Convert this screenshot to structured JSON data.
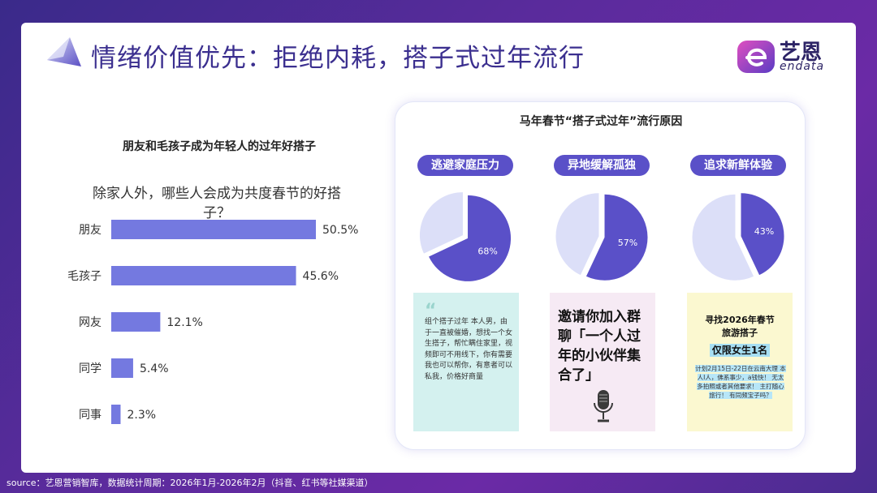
{
  "slide": {
    "title": "情绪价值优先：拒绝内耗，搭子式过年流行",
    "logo_cn": "艺恩",
    "logo_en": "endata",
    "source": "source：艺恩营销智库，数据统计周期：2026年1月-2026年2月（抖音、红书等社媒渠道）"
  },
  "left": {
    "title": "朋友和毛孩子成为年轻人的过年好搭子",
    "question": "除家人外，哪些人会成为共度春节的好搭子？"
  },
  "chart_data": {
    "type": "bar",
    "orientation": "horizontal",
    "categories": [
      "朋友",
      "毛孩子",
      "网友",
      "同学",
      "同事"
    ],
    "values": [
      50.5,
      45.6,
      12.1,
      5.4,
      2.3
    ],
    "value_labels": [
      "50.5%",
      "45.6%",
      "12.1%",
      "5.4%",
      "2.3%"
    ],
    "unit": "%",
    "color": "#7479e0",
    "grid": false
  },
  "right": {
    "title": "马年春节“搭子式过年”流行原因",
    "reasons": [
      {
        "label": "逃避家庭压力",
        "value": 68,
        "value_label": "68%"
      },
      {
        "label": "异地缓解孤独",
        "value": 57,
        "value_label": "57%"
      },
      {
        "label": "追求新鲜体验",
        "value": 43,
        "value_label": "43%"
      }
    ],
    "pie_color": "#5a50c8",
    "pie_rest_color": "#dcdff8",
    "posts": {
      "post1": {
        "quote": "“",
        "text": "组个搭子过年 本人男，由于一直被催婚，想找一个女生搭子，帮忙瞒住家里，视频即可不用线下，你有需要我也可以帮你，有意者可以私我，价格好商量"
      },
      "post2": {
        "text": "邀请你加入群聊「一个人过年的小伙伴集合了」"
      },
      "post3": {
        "heading_line1": "寻找2026年春节",
        "heading_line2": "旅游搭子",
        "tag": "仅限女生1名",
        "body": "计划2月15日-22日在云南大理 本人I人，佛系事少，a钱快！ 无太多拍照或者其他要求！ 主打随心旅行！ 有同频宝子吗？"
      }
    }
  }
}
